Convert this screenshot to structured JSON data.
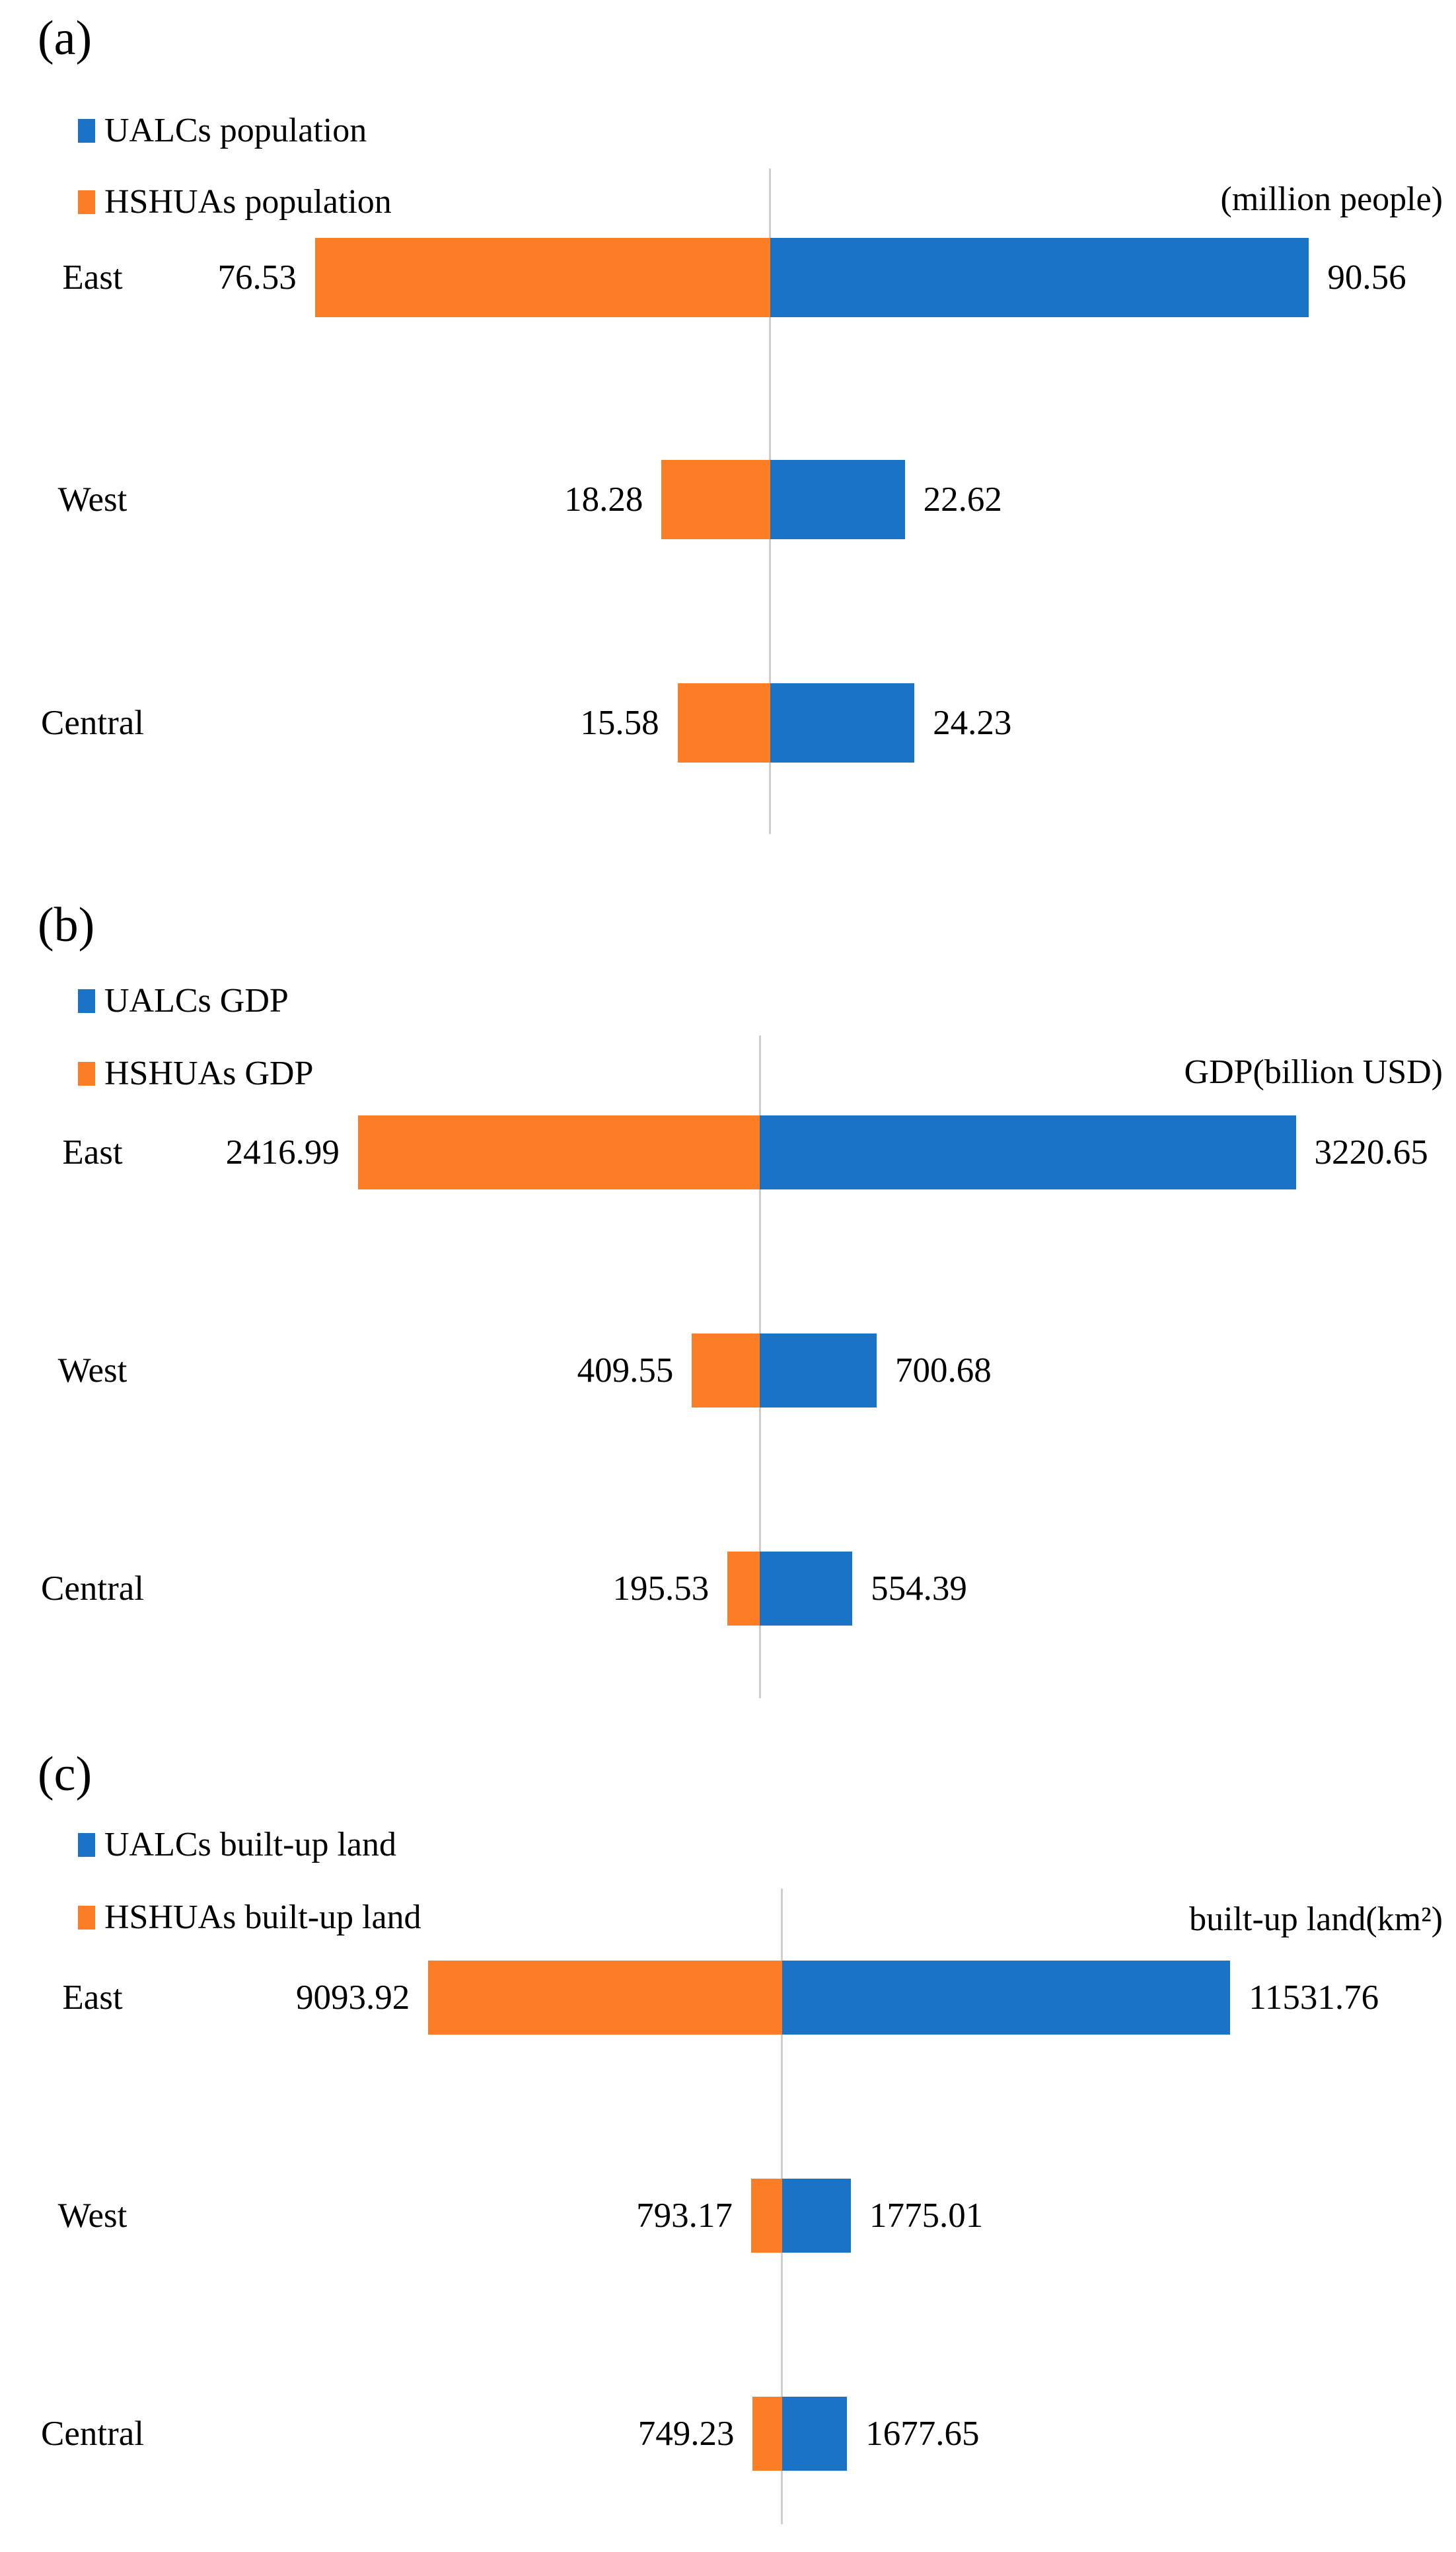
{
  "figure": {
    "background": "#ffffff"
  },
  "colors": {
    "ualc_blue": "#1B73C8",
    "hshua_orange": "#FB7D26",
    "axis_gray": "#CFCFCF"
  },
  "chart_data": [
    {
      "type": "bar",
      "orientation": "horizontal-diverging",
      "panel_label": "(a)",
      "unit_label": "(million people)",
      "categories": [
        "East",
        "West",
        "Central"
      ],
      "series": [
        {
          "name": "UALCs population",
          "color": "#1B73C8",
          "side": "right",
          "values": [
            90.56,
            22.62,
            24.23
          ]
        },
        {
          "name": "HSHUAs population",
          "color": "#FB7D26",
          "side": "left",
          "values": [
            76.53,
            18.28,
            15.58
          ]
        }
      ],
      "layout": {
        "axis_frac": 0.529,
        "max_bar_frac": 0.37,
        "scale_max": 90.56,
        "axis_color": "#CFCFCF",
        "legend_position": "top-left",
        "grid": false
      }
    },
    {
      "type": "bar",
      "orientation": "horizontal-diverging",
      "panel_label": "(b)",
      "unit_label": "GDP(billion USD)",
      "categories": [
        "East",
        "West",
        "Central"
      ],
      "series": [
        {
          "name": "UALCs GDP",
          "color": "#1B73C8",
          "side": "right",
          "values": [
            3220.65,
            700.68,
            554.39
          ]
        },
        {
          "name": "HSHUAs GDP",
          "color": "#FB7D26",
          "side": "left",
          "values": [
            2416.99,
            409.55,
            195.53
          ]
        }
      ],
      "layout": {
        "axis_frac": 0.522,
        "max_bar_frac": 0.368,
        "scale_max": 3220.65,
        "axis_color": "#CFCFCF",
        "legend_position": "top-left",
        "grid": false
      }
    },
    {
      "type": "bar",
      "orientation": "horizontal-diverging",
      "panel_label": "(c)",
      "unit_label": "built-up land(km²)",
      "categories": [
        "East",
        "West",
        "Central"
      ],
      "series": [
        {
          "name": "UALCs built-up land",
          "color": "#1B73C8",
          "side": "right",
          "values": [
            11531.76,
            1775.01,
            1677.65
          ]
        },
        {
          "name": "HSHUAs built-up land",
          "color": "#FB7D26",
          "side": "left",
          "values": [
            9093.92,
            793.17,
            749.23
          ]
        }
      ],
      "layout": {
        "axis_frac": 0.537,
        "max_bar_frac": 0.308,
        "scale_max": 11531.76,
        "axis_color": "#CFCFCF",
        "legend_position": "top-left",
        "grid": false
      }
    }
  ]
}
